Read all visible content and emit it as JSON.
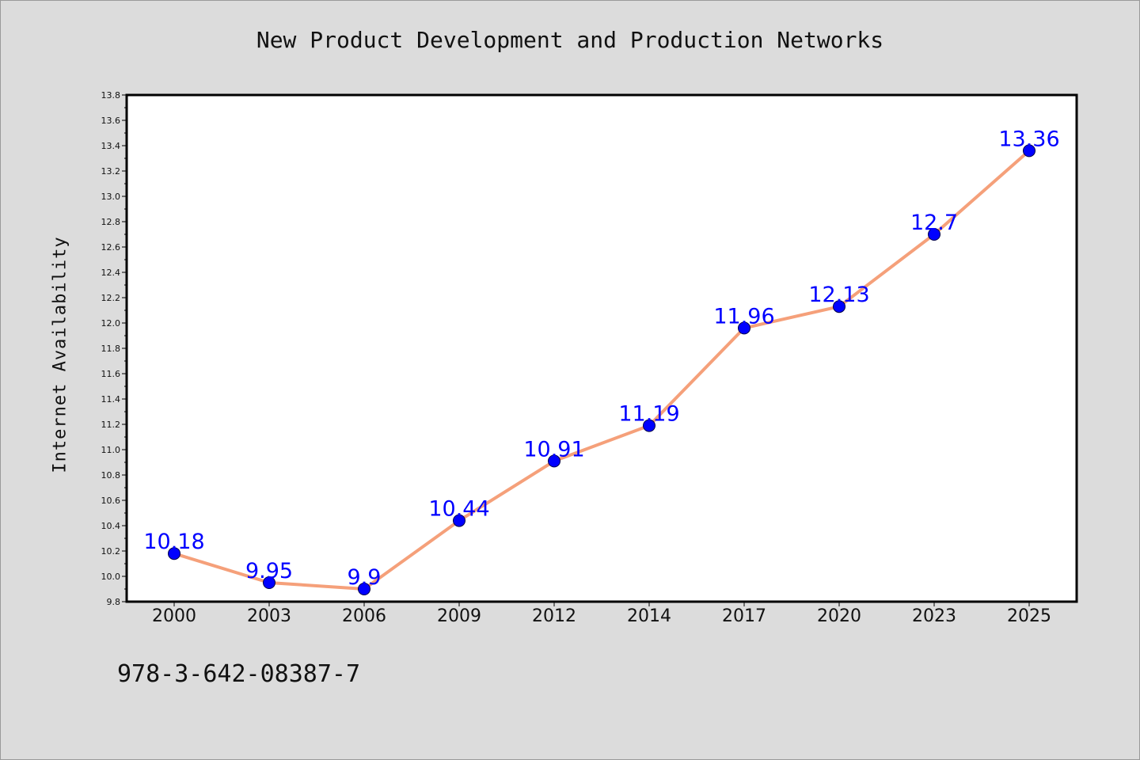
{
  "chart_data": {
    "type": "line",
    "title": "New Product Development and Production Networks",
    "xlabel": "",
    "ylabel": "Internet Availability",
    "categories": [
      "2000",
      "2003",
      "2006",
      "2009",
      "2012",
      "2014",
      "2017",
      "2020",
      "2023",
      "2025"
    ],
    "series": [
      {
        "values": [
          10.18,
          9.95,
          9.9,
          10.44,
          10.91,
          11.19,
          11.96,
          12.13,
          12.7,
          13.36
        ],
        "labels": [
          "10.18",
          "9.95",
          "9.9",
          "10.44",
          "10.91",
          "11.19",
          "11.96",
          "12.13",
          "12.7",
          "13.36"
        ]
      }
    ],
    "ylim": [
      9.8,
      13.8
    ],
    "yticks": [
      "9.8",
      "10.0",
      "10.2",
      "10.4",
      "10.6",
      "10.8",
      "11.0",
      "11.2",
      "11.4",
      "11.6",
      "11.8",
      "12.0",
      "12.2",
      "12.4",
      "12.6",
      "12.8",
      "13.0",
      "13.2",
      "13.4",
      "13.6",
      "13.8"
    ],
    "grid": false,
    "line_color": "#f5a07a",
    "marker_color": "#0000ff",
    "label_color": "#0000ff",
    "background_color": "#dcdcdc",
    "plot_background": "#ffffff"
  },
  "footer": {
    "code": "978-3-642-08387-7"
  }
}
